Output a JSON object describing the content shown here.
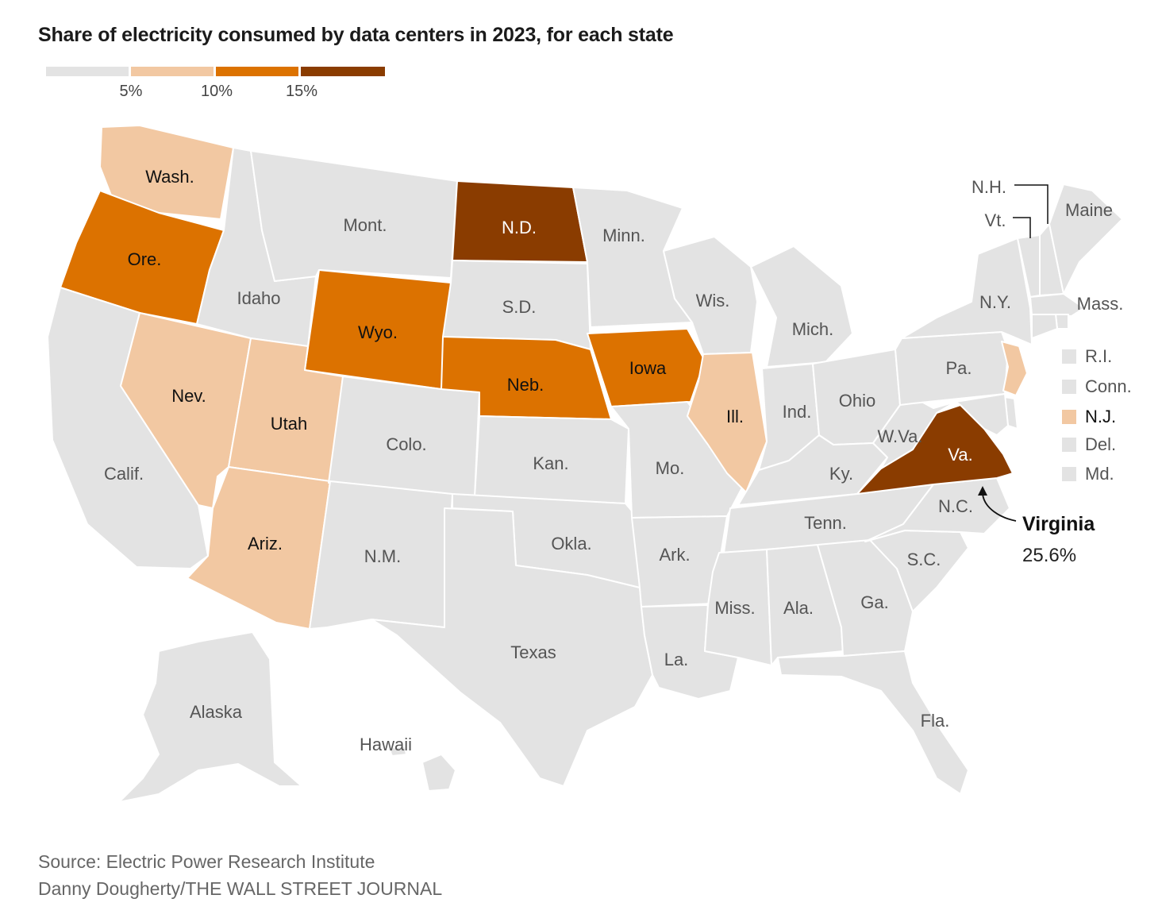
{
  "title": "Share of electricity consumed by data centers in 2023, for each state",
  "legend": {
    "colors": [
      "#e3e3e3",
      "#f2c8a2",
      "#dc7200",
      "#8a3c00"
    ],
    "ticks": [
      "5%",
      "10%",
      "15%"
    ]
  },
  "states": {
    "wash": {
      "label": "Wash.",
      "color": "#f2c8a2"
    },
    "ore": {
      "label": "Ore.",
      "color": "#dc7200"
    },
    "calif": {
      "label": "Calif.",
      "color": "#e3e3e3"
    },
    "idaho": {
      "label": "Idaho",
      "color": "#e3e3e3"
    },
    "nev": {
      "label": "Nev.",
      "color": "#f2c8a2"
    },
    "mont": {
      "label": "Mont.",
      "color": "#e3e3e3"
    },
    "wyo": {
      "label": "Wyo.",
      "color": "#dc7200"
    },
    "utah": {
      "label": "Utah",
      "color": "#f2c8a2"
    },
    "ariz": {
      "label": "Ariz.",
      "color": "#f2c8a2"
    },
    "colo": {
      "label": "Colo.",
      "color": "#e3e3e3"
    },
    "nm": {
      "label": "N.M.",
      "color": "#e3e3e3"
    },
    "nd": {
      "label": "N.D.",
      "color": "#8a3c00"
    },
    "sd": {
      "label": "S.D.",
      "color": "#e3e3e3"
    },
    "neb": {
      "label": "Neb.",
      "color": "#dc7200"
    },
    "kan": {
      "label": "Kan.",
      "color": "#e3e3e3"
    },
    "okla": {
      "label": "Okla.",
      "color": "#e3e3e3"
    },
    "texas": {
      "label": "Texas",
      "color": "#e3e3e3"
    },
    "minn": {
      "label": "Minn.",
      "color": "#e3e3e3"
    },
    "iowa": {
      "label": "Iowa",
      "color": "#dc7200"
    },
    "mo": {
      "label": "Mo.",
      "color": "#e3e3e3"
    },
    "ark": {
      "label": "Ark.",
      "color": "#e3e3e3"
    },
    "la": {
      "label": "La.",
      "color": "#e3e3e3"
    },
    "wis": {
      "label": "Wis.",
      "color": "#e3e3e3"
    },
    "ill": {
      "label": "Ill.",
      "color": "#f2c8a2"
    },
    "mich": {
      "label": "Mich.",
      "color": "#e3e3e3"
    },
    "ind": {
      "label": "Ind.",
      "color": "#e3e3e3"
    },
    "ohio": {
      "label": "Ohio",
      "color": "#e3e3e3"
    },
    "ky": {
      "label": "Ky.",
      "color": "#e3e3e3"
    },
    "tenn": {
      "label": "Tenn.",
      "color": "#e3e3e3"
    },
    "miss": {
      "label": "Miss.",
      "color": "#e3e3e3"
    },
    "ala": {
      "label": "Ala.",
      "color": "#e3e3e3"
    },
    "ga": {
      "label": "Ga.",
      "color": "#e3e3e3"
    },
    "fla": {
      "label": "Fla.",
      "color": "#e3e3e3"
    },
    "sc": {
      "label": "S.C.",
      "color": "#e3e3e3"
    },
    "nc": {
      "label": "N.C.",
      "color": "#e3e3e3"
    },
    "va": {
      "label": "Va.",
      "color": "#8a3c00"
    },
    "wva": {
      "label": "W.Va.",
      "color": "#e3e3e3"
    },
    "pa": {
      "label": "Pa.",
      "color": "#e3e3e3"
    },
    "ny": {
      "label": "N.Y.",
      "color": "#e3e3e3"
    },
    "vt": {
      "label": "Vt.",
      "color": "#e3e3e3"
    },
    "nh": {
      "label": "N.H.",
      "color": "#e3e3e3"
    },
    "maine": {
      "label": "Maine",
      "color": "#e3e3e3"
    },
    "mass": {
      "label": "Mass.",
      "color": "#e3e3e3"
    },
    "nj": {
      "label": "N.J.",
      "color": "#f2c8a2"
    },
    "alaska": {
      "label": "Alaska",
      "color": "#e3e3e3"
    },
    "hawaii": {
      "label": "Hawaii",
      "color": "#e3e3e3"
    }
  },
  "northeast_key": [
    {
      "label": "R.I.",
      "color": "#e3e3e3"
    },
    {
      "label": "Conn.",
      "color": "#e3e3e3"
    },
    {
      "label": "N.J.",
      "color": "#f2c8a2"
    },
    {
      "label": "Del.",
      "color": "#e3e3e3"
    },
    {
      "label": "Md.",
      "color": "#e3e3e3"
    }
  ],
  "callout": {
    "name": "Virginia",
    "value": "25.6%"
  },
  "source": "Source: Electric Power Research Institute",
  "credit": "Danny Dougherty/THE WALL STREET JOURNAL"
}
